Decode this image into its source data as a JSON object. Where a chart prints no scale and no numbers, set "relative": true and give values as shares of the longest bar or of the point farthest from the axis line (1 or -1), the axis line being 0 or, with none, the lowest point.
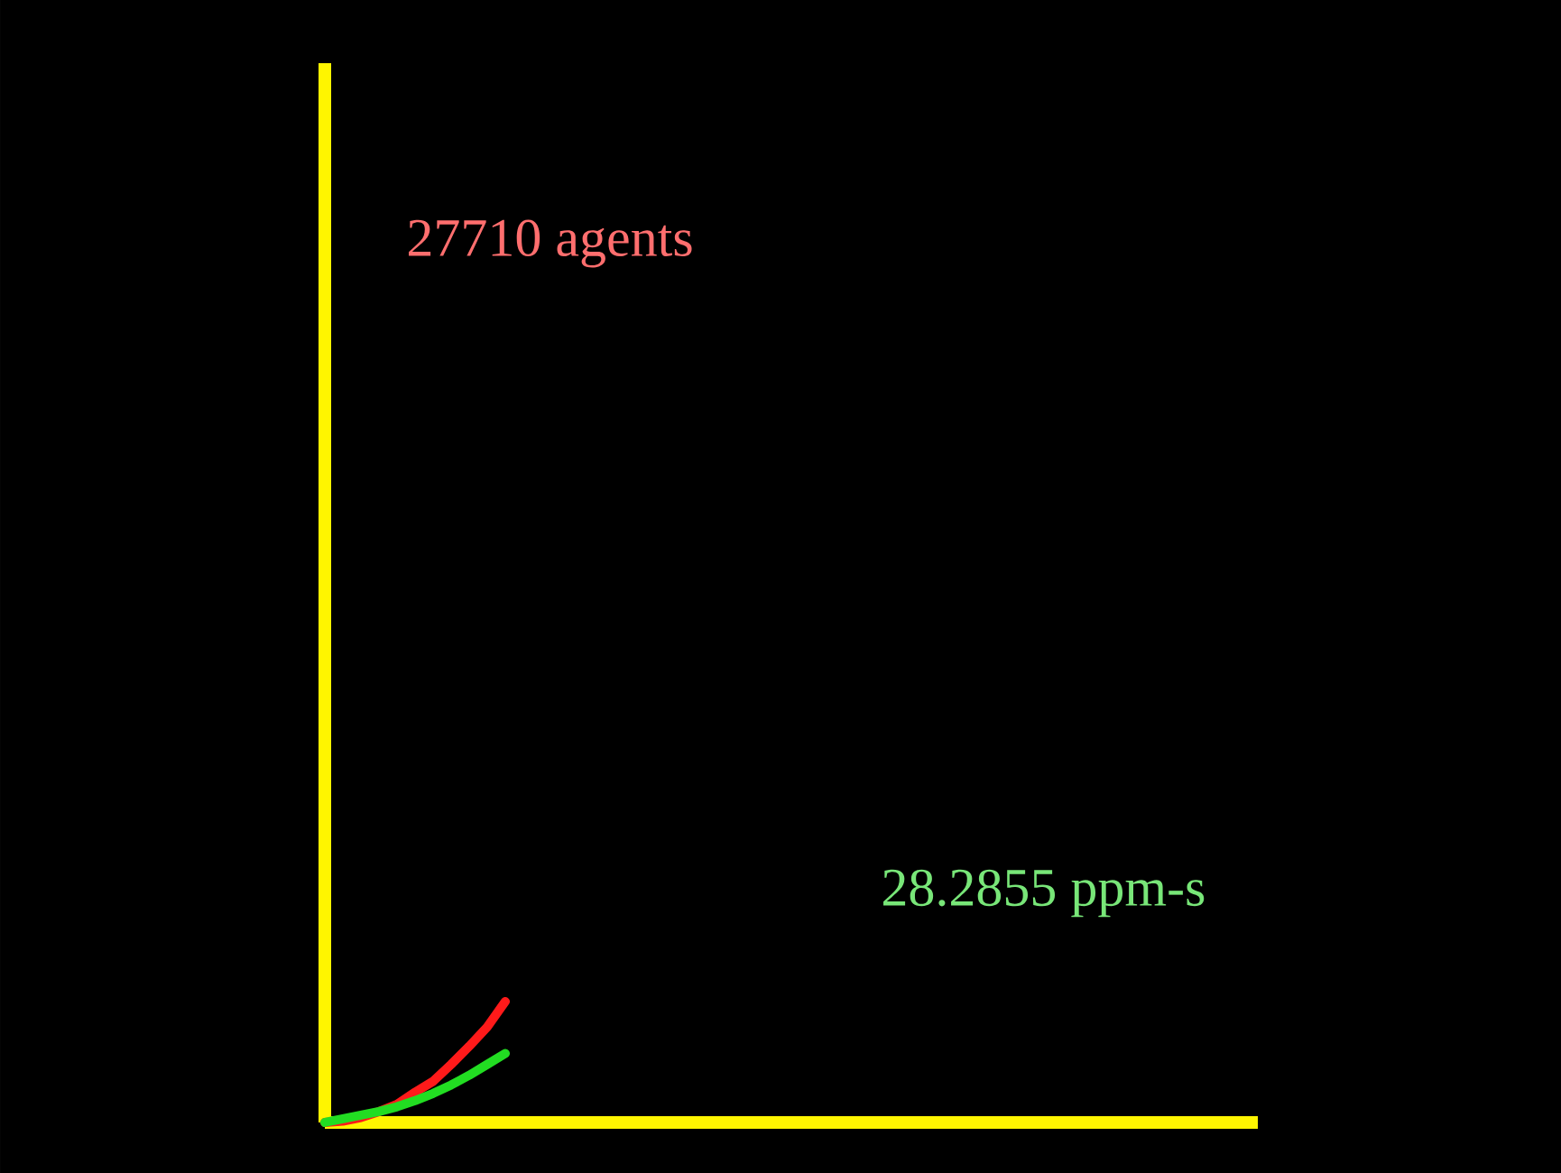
{
  "chart_data": {
    "type": "line",
    "relative": true,
    "categories": [
      null,
      null,
      null,
      null,
      null,
      null,
      null,
      null,
      null,
      null,
      null
    ],
    "series": [
      {
        "color": "#ff1a1a",
        "values": [
          0,
          0.01,
          0.04,
          0.09,
          0.15,
          0.25,
          0.34,
          0.48,
          0.63,
          0.79,
          1
        ]
      },
      {
        "color": "#22dd22",
        "values": [
          0,
          0.03,
          0.06,
          0.09,
          0.13,
          0.18,
          0.24,
          0.31,
          0.39,
          0.48,
          0.57
        ]
      }
    ],
    "annotations": [
      "27710 agents",
      "28.2855 ppm-s"
    ]
  }
}
